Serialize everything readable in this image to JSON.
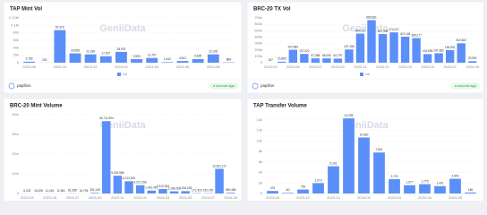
{
  "chart_data": [
    {
      "type": "bar",
      "title": "TAP Mint Vol",
      "watermark": "GeniiData",
      "footer": {
        "author": "papillon",
        "time": "a second ago"
      },
      "categories": [
        "2023-06",
        null,
        "2023-10",
        null,
        "2023-12",
        null,
        "2024-02",
        null,
        "2024-04",
        null,
        "2024-06",
        null,
        "2024-08",
        null
      ],
      "series": [
        {
          "name": "vol",
          "color": "#5b8ff9",
          "values": [
            2783,
            200,
            87376,
            24958,
            22339,
            17307,
            28975,
            9533,
            12767,
            1442,
            4541,
            9835,
            22376,
            884
          ],
          "value_labels": [
            "2,783",
            "200",
            "87,376",
            "24,958",
            "22,339",
            "17,307",
            "28,975",
            "9,533",
            "12,767",
            "1,442",
            "4,541",
            "9,835",
            "22,376",
            "884"
          ]
        }
      ],
      "ylim": [
        0,
        120000
      ],
      "yticks": [
        0,
        {
          "value": 20000,
          "label": "20k"
        },
        {
          "value": 40000,
          "label": "40k"
        },
        {
          "value": 60000,
          "label": "60k"
        },
        {
          "value": 80000,
          "label": "80k"
        },
        {
          "value": 100000,
          "label": "0.1M"
        },
        {
          "value": 120000,
          "label": "0.12M"
        }
      ],
      "grid": true
    },
    {
      "type": "bar",
      "title": "BRC-20 TX Vol",
      "watermark": "GeniiData",
      "footer": {
        "author": "papillon",
        "time": "a second ago"
      },
      "categories": [
        "2023-03",
        null,
        "2023-05",
        null,
        "2023-07",
        null,
        "2023-09",
        null,
        "2023-11",
        null,
        "2024-01",
        null,
        "2024-03",
        null,
        "2024-05",
        null,
        "2024-07",
        null,
        "2024-09"
      ],
      "series": [
        {
          "name": "vol",
          "color": "#5b8ff9",
          "values": [
            347,
            15863,
            202684,
            137022,
            67386,
            68092,
            64797,
            207156,
            454121,
            665661,
            447305,
            474217,
            407148,
            385277,
            134696,
            147362,
            196991,
            302822,
            23591
          ],
          "value_labels": [
            "347",
            "15,863",
            "202,684",
            "137,022",
            "67,386",
            "68,092",
            "64,797",
            "207,156",
            "454,121",
            "665,661",
            "447,305",
            "474,217",
            "407,148",
            "385,277",
            "134,696",
            "147,362",
            "196,991",
            "302,822",
            "23,591"
          ]
        }
      ],
      "ylim": [
        0,
        700000
      ],
      "yticks": [
        0,
        {
          "value": 100000,
          "label": "100k"
        },
        {
          "value": 200000,
          "label": "200k"
        },
        {
          "value": 300000,
          "label": "300k"
        },
        {
          "value": 400000,
          "label": "400k"
        },
        {
          "value": 500000,
          "label": "500k"
        },
        {
          "value": 600000,
          "label": "600k"
        },
        {
          "value": 700000,
          "label": "700k"
        }
      ],
      "grid": true
    },
    {
      "type": "bar",
      "title": "BRC-20 Mint Volume",
      "watermark": "GeniiData",
      "categories": [
        "2023-03",
        null,
        "2023-05",
        null,
        "2023-07",
        null,
        "2023-09",
        null,
        "2023-11",
        null,
        "2024-01",
        null,
        "2024-03",
        null,
        "2024-05",
        null,
        "2024-07",
        null,
        "2024-09"
      ],
      "series": [
        {
          "color": "#5b8ff9",
          "values": [
            6223,
            16026,
            11044,
            11961,
            81358,
            16794,
            301145,
            36711394,
            9000598,
            6212000,
            4217256,
            1491451,
            2312054,
            1104052,
            1194025,
            171419,
            142700,
            12531117,
            360486
          ],
          "value_labels": [
            "6,223",
            "16,026",
            "11,044",
            "11,961",
            "81,358",
            "16,794",
            "301,145",
            "36,711,394",
            "9,000,598",
            "6,212,000",
            "4,217,256",
            "1,491,451",
            "2,312,054",
            "1,104,052",
            "1,194,025",
            "171,419",
            "142,700",
            "12,531,117",
            "360,486"
          ]
        }
      ],
      "ylim": [
        0,
        40000000
      ],
      "yticks": [
        0,
        {
          "value": 10000000,
          "label": "10m"
        },
        {
          "value": 20000000,
          "label": "20m"
        },
        {
          "value": 30000000,
          "label": "30m"
        },
        {
          "value": 40000000,
          "label": "40m"
        }
      ],
      "grid": true
    },
    {
      "type": "bar",
      "title": "TAP Transfer Volume",
      "watermark": "GeniiData",
      "categories": [
        "2023-08",
        null,
        "2023-10",
        null,
        "2023-12",
        null,
        "2024-02",
        null,
        "2024-04",
        null,
        "2024-06",
        null,
        "2024-08",
        null
      ],
      "series": [
        {
          "color": "#5b8ff9",
          "values": [
            476,
            111,
            759,
            1973,
            5191,
            14295,
            10660,
            7801,
            2723,
            1577,
            1775,
            1401,
            2800,
            186
          ],
          "value_labels": [
            "476",
            "111",
            "759",
            "1,973",
            "5,191",
            "14,295",
            "10,660",
            "7,801",
            "2,723",
            "1,577",
            "1,775",
            "1,401",
            "2,800",
            "186"
          ]
        }
      ],
      "ylim": [
        0,
        15000
      ],
      "yticks": [
        0,
        {
          "value": 2000,
          "label": "2k"
        },
        {
          "value": 4000,
          "label": "4k"
        },
        {
          "value": 6000,
          "label": "6k"
        },
        {
          "value": 8000,
          "label": "8k"
        },
        {
          "value": 10000,
          "label": "10k"
        },
        {
          "value": 12000,
          "label": "12k"
        },
        {
          "value": 14000,
          "label": "14k"
        }
      ],
      "grid": true
    }
  ]
}
